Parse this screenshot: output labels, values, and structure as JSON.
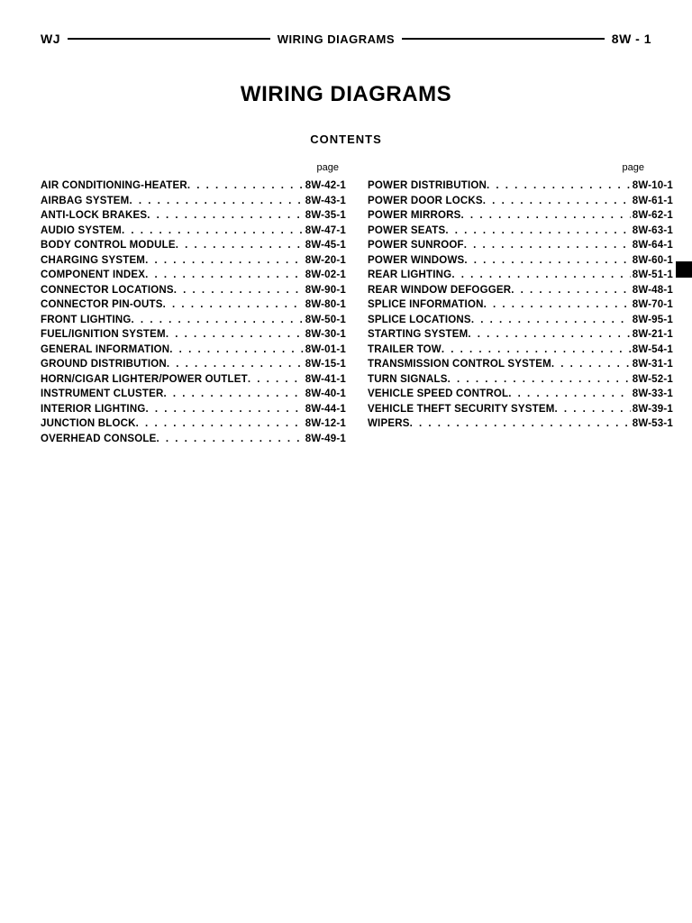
{
  "header": {
    "left": "WJ",
    "center": "WIRING DIAGRAMS",
    "right": "8W - 1"
  },
  "title": "WIRING DIAGRAMS",
  "subtitle": "CONTENTS",
  "page_label": "page",
  "left_column": [
    {
      "label": "AIR CONDITIONING-HEATER",
      "page": "8W-42-1"
    },
    {
      "label": "AIRBAG SYSTEM",
      "page": "8W-43-1"
    },
    {
      "label": "ANTI-LOCK BRAKES",
      "page": "8W-35-1"
    },
    {
      "label": "AUDIO SYSTEM",
      "page": "8W-47-1"
    },
    {
      "label": "BODY CONTROL MODULE",
      "page": "8W-45-1"
    },
    {
      "label": "CHARGING SYSTEM",
      "page": "8W-20-1"
    },
    {
      "label": "COMPONENT INDEX",
      "page": "8W-02-1"
    },
    {
      "label": "CONNECTOR LOCATIONS",
      "page": "8W-90-1"
    },
    {
      "label": "CONNECTOR PIN-OUTS",
      "page": "8W-80-1"
    },
    {
      "label": "FRONT LIGHTING",
      "page": "8W-50-1"
    },
    {
      "label": "FUEL/IGNITION SYSTEM",
      "page": "8W-30-1"
    },
    {
      "label": "GENERAL INFORMATION",
      "page": "8W-01-1"
    },
    {
      "label": "GROUND DISTRIBUTION",
      "page": "8W-15-1"
    },
    {
      "label": "HORN/CIGAR LIGHTER/POWER OUTLET",
      "page": "8W-41-1"
    },
    {
      "label": "INSTRUMENT CLUSTER",
      "page": "8W-40-1"
    },
    {
      "label": "INTERIOR LIGHTING",
      "page": "8W-44-1"
    },
    {
      "label": "JUNCTION BLOCK",
      "page": "8W-12-1"
    },
    {
      "label": "OVERHEAD CONSOLE",
      "page": "8W-49-1"
    }
  ],
  "right_column": [
    {
      "label": "POWER DISTRIBUTION",
      "page": "8W-10-1"
    },
    {
      "label": "POWER DOOR LOCKS",
      "page": "8W-61-1"
    },
    {
      "label": "POWER MIRRORS",
      "page": "8W-62-1"
    },
    {
      "label": "POWER SEATS",
      "page": "8W-63-1"
    },
    {
      "label": "POWER SUNROOF",
      "page": "8W-64-1"
    },
    {
      "label": "POWER WINDOWS",
      "page": "8W-60-1"
    },
    {
      "label": "REAR LIGHTING",
      "page": "8W-51-1"
    },
    {
      "label": "REAR WINDOW DEFOGGER",
      "page": "8W-48-1"
    },
    {
      "label": "SPLICE INFORMATION",
      "page": "8W-70-1"
    },
    {
      "label": "SPLICE LOCATIONS",
      "page": "8W-95-1"
    },
    {
      "label": "STARTING SYSTEM",
      "page": "8W-21-1"
    },
    {
      "label": "TRAILER TOW",
      "page": "8W-54-1"
    },
    {
      "label": "TRANSMISSION CONTROL SYSTEM",
      "page": "8W-31-1"
    },
    {
      "label": "TURN SIGNALS",
      "page": "8W-52-1"
    },
    {
      "label": "VEHICLE SPEED CONTROL",
      "page": "8W-33-1"
    },
    {
      "label": "VEHICLE THEFT SECURITY SYSTEM",
      "page": "8W-39-1"
    },
    {
      "label": "WIPERS",
      "page": "8W-53-1"
    }
  ]
}
